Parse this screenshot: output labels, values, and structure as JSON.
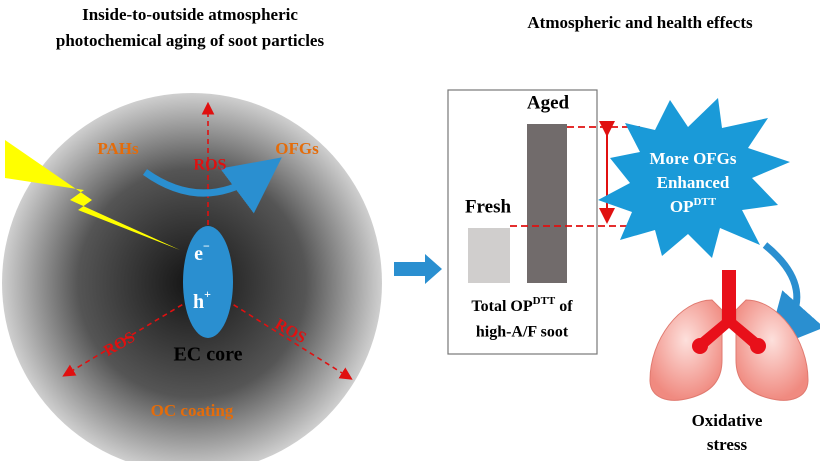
{
  "left_panel": {
    "title_lines": [
      "Inside-to-outside atmospheric",
      "photochemical aging of soot particles"
    ],
    "labels": {
      "pahs": "PAHs",
      "ros_top": "ROS",
      "ofgs": "OFGs",
      "electron": "e",
      "electron_sup": "−",
      "hole": "h",
      "hole_sup": "+",
      "ros_left": "ROS",
      "ros_right": "ROS",
      "ec_core": "EC core",
      "oc_coating": "OC coating"
    }
  },
  "right_panel": {
    "title": "Atmospheric and health effects",
    "bars": {
      "fresh": "Fresh",
      "aged": "Aged"
    },
    "caption": {
      "line1_a": "Total OP",
      "line1_sup": "DTT",
      "line1_b": "of",
      "line2": "high-A/F soot"
    },
    "star": {
      "line1": "More OFGs",
      "line2": "Enhanced",
      "line3_a": "OP",
      "line3_sup": "DTT"
    },
    "outcome": [
      "Oxidative",
      "stress"
    ]
  }
}
